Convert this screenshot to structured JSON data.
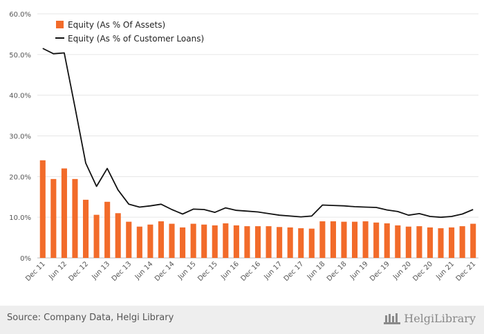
{
  "chart_data": {
    "type": "bar",
    "y_ticks": [
      "0%",
      "10.0%",
      "20.0%",
      "30.0%",
      "40.0%",
      "50.0%",
      "60.0%"
    ],
    "ylim": [
      0,
      60
    ],
    "grid": true,
    "legend_position": "top-left",
    "categories": [
      "Dec 11",
      "Mar 12",
      "Jun 12",
      "Sep 12",
      "Dec 12",
      "Mar 13",
      "Jun 13",
      "Sep 13",
      "Dec 13",
      "Mar 14",
      "Jun 14",
      "Sep 14",
      "Dec 14",
      "Mar 15",
      "Jun 15",
      "Sep 15",
      "Dec 15",
      "Mar 16",
      "Jun 16",
      "Sep 16",
      "Dec 16",
      "Mar 17",
      "Jun 17",
      "Sep 17",
      "Dec 17",
      "Mar 18",
      "Jun 18",
      "Sep 18",
      "Dec 18",
      "Mar 19",
      "Jun 19",
      "Sep 19",
      "Dec 19",
      "Mar 20",
      "Jun 20",
      "Sep 20",
      "Dec 20",
      "Mar 21",
      "Jun 21",
      "Sep 21",
      "Dec 21"
    ],
    "x_tick_labels": [
      "Dec 11",
      "Jun 12",
      "Dec 12",
      "Jun 13",
      "Dec 13",
      "Jun 14",
      "Dec 14",
      "Jun 15",
      "Dec 15",
      "Jun 16",
      "Dec 16",
      "Jun 17",
      "Dec 17",
      "Jun 18",
      "Dec 18",
      "Jun 19",
      "Dec 19",
      "Jun 20",
      "Dec 20",
      "Jun 21",
      "Dec 21"
    ],
    "series": [
      {
        "name": "Equity (As % Of Assets)",
        "type": "bar",
        "color": "#F26B2A",
        "values": [
          24.0,
          19.4,
          22.0,
          19.4,
          14.3,
          10.6,
          13.8,
          11.0,
          8.9,
          7.7,
          8.2,
          9.0,
          8.4,
          7.5,
          8.4,
          8.2,
          8.0,
          8.5,
          8.0,
          7.8,
          7.8,
          7.8,
          7.6,
          7.5,
          7.3,
          7.2,
          9.0,
          9.0,
          8.9,
          8.9,
          9.0,
          8.7,
          8.5,
          8.0,
          7.7,
          7.8,
          7.5,
          7.3,
          7.5,
          7.8,
          8.4
        ]
      },
      {
        "name": "Equity (As % of Customer Loans)",
        "type": "line",
        "color": "#111111",
        "values": [
          51.5,
          50.2,
          50.4,
          37.0,
          23.3,
          17.6,
          22.0,
          16.7,
          13.2,
          12.5,
          12.8,
          13.2,
          11.9,
          10.8,
          12.0,
          11.9,
          11.2,
          12.3,
          11.7,
          11.5,
          11.3,
          10.9,
          10.5,
          10.3,
          10.1,
          10.3,
          13.0,
          12.9,
          12.8,
          12.6,
          12.5,
          12.4,
          11.8,
          11.4,
          10.5,
          10.9,
          10.2,
          10.0,
          10.2,
          10.8,
          11.9
        ]
      }
    ]
  },
  "footer": {
    "source": "Source: Company Data, Helgi Library",
    "brand": "HelgiLibrary"
  }
}
